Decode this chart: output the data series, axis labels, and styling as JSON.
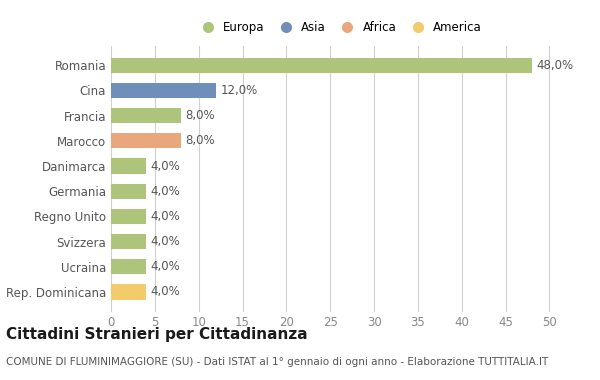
{
  "categories": [
    "Romania",
    "Cina",
    "Francia",
    "Marocco",
    "Danimarca",
    "Germania",
    "Regno Unito",
    "Svizzera",
    "Ucraina",
    "Rep. Dominicana"
  ],
  "values": [
    48.0,
    12.0,
    8.0,
    8.0,
    4.0,
    4.0,
    4.0,
    4.0,
    4.0,
    4.0
  ],
  "labels": [
    "48,0%",
    "12,0%",
    "8,0%",
    "8,0%",
    "4,0%",
    "4,0%",
    "4,0%",
    "4,0%",
    "4,0%",
    "4,0%"
  ],
  "colors": [
    "#adc47a",
    "#6f8fba",
    "#adc47a",
    "#e9a87c",
    "#adc47a",
    "#adc47a",
    "#adc47a",
    "#adc47a",
    "#adc47a",
    "#f2cb6a"
  ],
  "legend_labels": [
    "Europa",
    "Asia",
    "Africa",
    "America"
  ],
  "legend_colors": [
    "#adc47a",
    "#6f8fba",
    "#e9a87c",
    "#f2cb6a"
  ],
  "xlim": [
    0,
    52
  ],
  "xticks": [
    0,
    5,
    10,
    15,
    20,
    25,
    30,
    35,
    40,
    45,
    50
  ],
  "title": "Cittadini Stranieri per Cittadinanza",
  "subtitle": "COMUNE DI FLUMINIMAGGIORE (SU) - Dati ISTAT al 1° gennaio di ogni anno - Elaborazione TUTTITALIA.IT",
  "bg_color": "#ffffff",
  "grid_color": "#d0d0d0",
  "bar_height": 0.6,
  "label_fontsize": 8.5,
  "tick_fontsize": 8.5,
  "title_fontsize": 11,
  "subtitle_fontsize": 7.5
}
